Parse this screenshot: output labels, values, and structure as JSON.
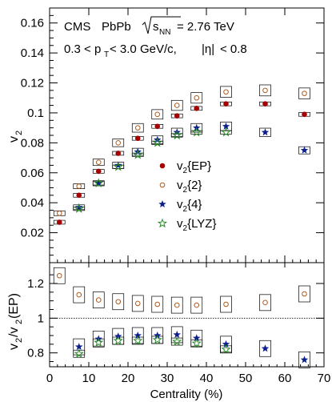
{
  "chart_data": {
    "type": "scatter",
    "collaboration": "CMS",
    "system": "PbPb",
    "energy_label": "= 2.76 TeV",
    "cuts_pt": "0.3 < p",
    "cuts_pt_rest": " < 3.0 GeV/c,",
    "cuts_eta": "< 0.8",
    "xlabel": "Centrality (%)",
    "xlim": [
      0,
      70
    ],
    "x_ticks": [
      0,
      10,
      20,
      30,
      40,
      50,
      60,
      70
    ],
    "top_panel": {
      "ylabel": "v",
      "ylabel_sub": "2",
      "ylim": [
        0.0,
        0.17
      ],
      "y_ticks": [
        0.02,
        0.04,
        0.06,
        0.08,
        0.1,
        0.12,
        0.14,
        0.16
      ],
      "series": [
        {
          "name": "v2{EP}",
          "label_main": "v",
          "label_sub": "2",
          "label_tail": "{EP}",
          "marker": "filled-circle",
          "color": "#a50000",
          "x": [
            2.5,
            7.5,
            12.5,
            17.5,
            22.5,
            27.5,
            32.5,
            37.5,
            45,
            55,
            65
          ],
          "y": [
            0.027,
            0.045,
            0.061,
            0.073,
            0.083,
            0.091,
            0.098,
            0.103,
            0.106,
            0.106,
            0.099
          ]
        },
        {
          "name": "v2{2}",
          "label_main": "v",
          "label_sub": "2",
          "label_tail": "{2}",
          "marker": "open-circle",
          "color": "#b05a1e",
          "x": [
            2.5,
            7.5,
            12.5,
            17.5,
            22.5,
            27.5,
            32.5,
            37.5,
            45,
            55,
            65
          ],
          "y": [
            0.033,
            0.051,
            0.067,
            0.08,
            0.09,
            0.099,
            0.105,
            0.11,
            0.114,
            0.115,
            0.113
          ]
        },
        {
          "name": "v2{4}",
          "label_main": "v",
          "label_sub": "2",
          "label_tail": "{4}",
          "marker": "filled-star",
          "color": "#0a1e8c",
          "x": [
            7.5,
            12.5,
            17.5,
            22.5,
            27.5,
            32.5,
            37.5,
            45,
            55,
            65
          ],
          "y": [
            0.037,
            0.053,
            0.065,
            0.074,
            0.082,
            0.087,
            0.09,
            0.091,
            0.087,
            0.075
          ]
        },
        {
          "name": "v2{LYZ}",
          "label_main": "v",
          "label_sub": "2",
          "label_tail": "{LYZ}",
          "marker": "open-star",
          "color": "#2a8c2a",
          "x": [
            7.5,
            12.5,
            17.5,
            22.5,
            27.5,
            32.5,
            37.5,
            45
          ],
          "y": [
            0.036,
            0.053,
            0.064,
            0.072,
            0.08,
            0.085,
            0.087,
            0.087
          ]
        }
      ]
    },
    "bottom_panel": {
      "ylabel": "v",
      "ylabel_sub": "2",
      "ylabel_mid": "/v",
      "ylabel_tail": "(EP)",
      "ylim": [
        0.72,
        1.32
      ],
      "y_ticks": [
        0.8,
        1.0,
        1.2
      ],
      "y_tick_labels": [
        "0.8",
        "1",
        "1.2"
      ],
      "reference_line": 1.0,
      "series": [
        {
          "name": "v2{2}/v2{EP}",
          "marker": "open-circle",
          "color": "#b05a1e",
          "x": [
            2.5,
            7.5,
            12.5,
            17.5,
            22.5,
            27.5,
            32.5,
            37.5,
            45,
            55,
            65
          ],
          "y": [
            1.245,
            1.135,
            1.105,
            1.095,
            1.085,
            1.08,
            1.075,
            1.075,
            1.08,
            1.09,
            1.14
          ]
        },
        {
          "name": "v2{4}/v2{EP}",
          "marker": "filled-star",
          "color": "#0a1e8c",
          "x": [
            7.5,
            12.5,
            17.5,
            22.5,
            27.5,
            32.5,
            37.5,
            45,
            55,
            65
          ],
          "y": [
            0.835,
            0.88,
            0.895,
            0.9,
            0.9,
            0.905,
            0.885,
            0.85,
            0.825,
            0.76
          ]
        },
        {
          "name": "v2{LYZ}/v2{EP}",
          "marker": "open-star",
          "color": "#2a8c2a",
          "x": [
            7.5,
            12.5,
            17.5,
            22.5,
            27.5,
            32.5,
            37.5,
            45
          ],
          "y": [
            0.795,
            0.86,
            0.87,
            0.87,
            0.875,
            0.865,
            0.855,
            0.82
          ]
        }
      ]
    }
  }
}
